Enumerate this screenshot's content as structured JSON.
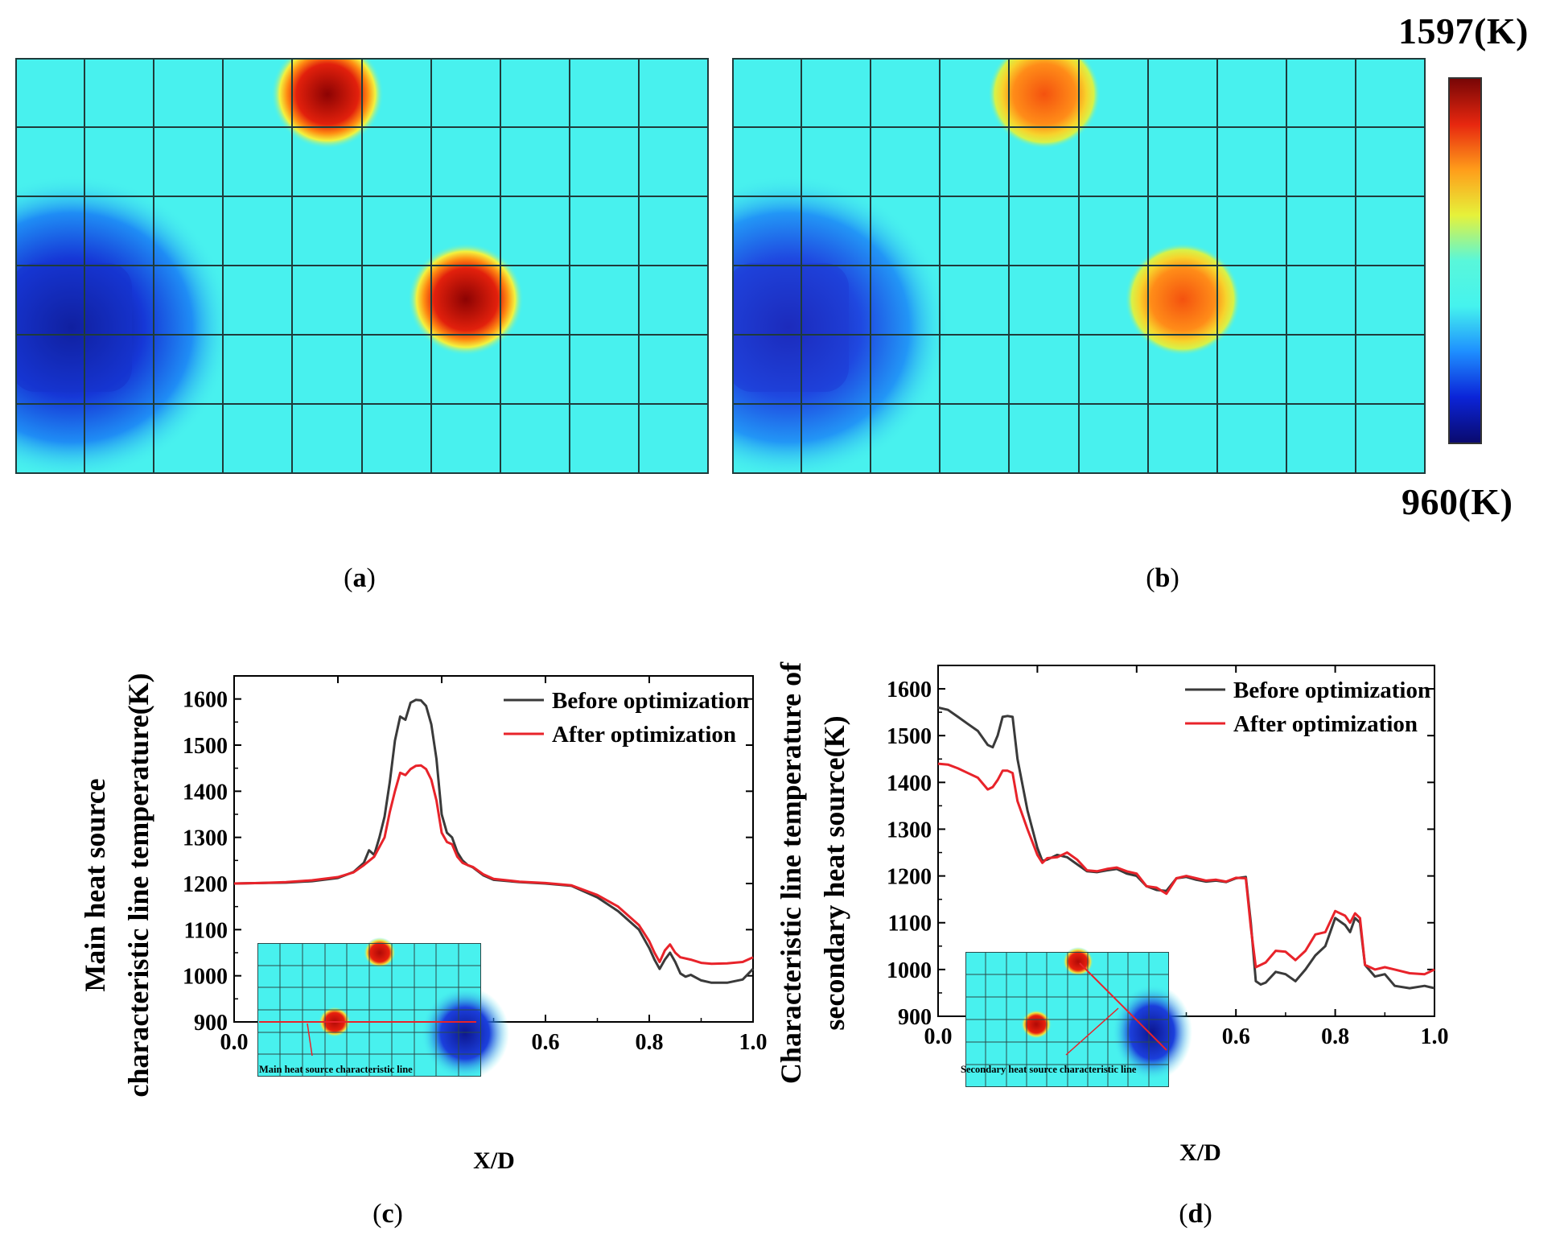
{
  "colorbar": {
    "max_label": "1597(K)",
    "min_label": "960(K)",
    "colormap": [
      "#0a0a6e",
      "#0b24d8",
      "#1e8fff",
      "#45f3ee",
      "#59f7da",
      "#e6f23a",
      "#ff9d1a",
      "#e7270f",
      "#780606"
    ]
  },
  "panels": {
    "a": {
      "open": "(",
      "letter": "a",
      "close": ")"
    },
    "b": {
      "open": "(",
      "letter": "b",
      "close": ")"
    },
    "c": {
      "open": "(",
      "letter": "c",
      "close": ")"
    },
    "d": {
      "open": "(",
      "letter": "d",
      "close": ")"
    }
  },
  "field_colors": {
    "background": "#48f1ee",
    "grid": "#1b3a3a"
  },
  "chart_data": [
    {
      "type": "line",
      "panel": "c",
      "xlabel": "X/D",
      "ylabel_lines": [
        "Main heat source",
        "characteristic line temperature(K)"
      ],
      "xlim": [
        0.0,
        1.0
      ],
      "ylim": [
        900,
        1650
      ],
      "xticks": [
        "0.0",
        "0.2",
        "0.4",
        "0.6",
        "0.8",
        "1.0"
      ],
      "yticks": [
        "900",
        "1000",
        "1100",
        "1200",
        "1300",
        "1400",
        "1500",
        "1600"
      ],
      "inset_caption": "Main heat source characteristic line",
      "series": [
        {
          "name": "Before optimization",
          "color": "#3a3a3a",
          "x": [
            0.0,
            0.05,
            0.1,
            0.15,
            0.2,
            0.23,
            0.25,
            0.26,
            0.27,
            0.28,
            0.29,
            0.3,
            0.31,
            0.32,
            0.33,
            0.34,
            0.35,
            0.36,
            0.37,
            0.38,
            0.39,
            0.4,
            0.41,
            0.42,
            0.43,
            0.44,
            0.45,
            0.46,
            0.48,
            0.5,
            0.55,
            0.6,
            0.65,
            0.7,
            0.74,
            0.78,
            0.8,
            0.81,
            0.82,
            0.83,
            0.84,
            0.85,
            0.86,
            0.87,
            0.88,
            0.9,
            0.92,
            0.95,
            0.98,
            1.0
          ],
          "y": [
            1200,
            1201,
            1202,
            1205,
            1212,
            1225,
            1245,
            1272,
            1262,
            1300,
            1345,
            1420,
            1510,
            1562,
            1555,
            1592,
            1598,
            1597,
            1585,
            1545,
            1470,
            1350,
            1310,
            1300,
            1268,
            1250,
            1240,
            1235,
            1218,
            1208,
            1203,
            1200,
            1195,
            1170,
            1140,
            1100,
            1060,
            1035,
            1015,
            1035,
            1050,
            1030,
            1005,
            998,
            1002,
            990,
            985,
            985,
            992,
            1015
          ]
        },
        {
          "name": "After optimization",
          "color": "#e8232a",
          "x": [
            0.0,
            0.05,
            0.1,
            0.15,
            0.2,
            0.23,
            0.25,
            0.27,
            0.29,
            0.3,
            0.31,
            0.32,
            0.33,
            0.34,
            0.35,
            0.36,
            0.37,
            0.38,
            0.39,
            0.4,
            0.41,
            0.42,
            0.43,
            0.44,
            0.45,
            0.46,
            0.48,
            0.5,
            0.55,
            0.6,
            0.65,
            0.7,
            0.74,
            0.78,
            0.8,
            0.81,
            0.82,
            0.83,
            0.84,
            0.85,
            0.86,
            0.88,
            0.9,
            0.92,
            0.95,
            0.98,
            1.0
          ],
          "y": [
            1200,
            1201,
            1203,
            1207,
            1214,
            1224,
            1240,
            1258,
            1300,
            1355,
            1400,
            1440,
            1435,
            1448,
            1455,
            1456,
            1448,
            1425,
            1380,
            1310,
            1290,
            1285,
            1258,
            1245,
            1240,
            1236,
            1220,
            1210,
            1204,
            1201,
            1196,
            1175,
            1150,
            1110,
            1075,
            1050,
            1030,
            1055,
            1068,
            1050,
            1040,
            1035,
            1028,
            1026,
            1027,
            1030,
            1040
          ]
        }
      ],
      "legend": "top-right"
    },
    {
      "type": "line",
      "panel": "d",
      "xlabel": "X/D",
      "ylabel_lines": [
        "Characteristic line temperature of",
        "secondary heat source(K)"
      ],
      "xlim": [
        0.0,
        1.0
      ],
      "ylim": [
        900,
        1650
      ],
      "xticks": [
        "0.0",
        "0.2",
        "0.4",
        "0.6",
        "0.8",
        "1.0"
      ],
      "yticks": [
        "900",
        "1000",
        "1100",
        "1200",
        "1300",
        "1400",
        "1500",
        "1600"
      ],
      "inset_caption": "Secondary heat source characteristic line",
      "series": [
        {
          "name": "Before optimization",
          "color": "#3a3a3a",
          "x": [
            0.0,
            0.02,
            0.04,
            0.06,
            0.08,
            0.1,
            0.11,
            0.12,
            0.13,
            0.14,
            0.15,
            0.16,
            0.18,
            0.2,
            0.21,
            0.22,
            0.24,
            0.26,
            0.28,
            0.3,
            0.32,
            0.34,
            0.36,
            0.38,
            0.4,
            0.42,
            0.44,
            0.46,
            0.48,
            0.5,
            0.52,
            0.54,
            0.56,
            0.58,
            0.6,
            0.62,
            0.63,
            0.64,
            0.65,
            0.66,
            0.68,
            0.7,
            0.72,
            0.74,
            0.76,
            0.78,
            0.8,
            0.82,
            0.83,
            0.84,
            0.85,
            0.86,
            0.88,
            0.9,
            0.92,
            0.95,
            0.98,
            1.0
          ],
          "y": [
            1560,
            1555,
            1540,
            1525,
            1510,
            1480,
            1475,
            1500,
            1540,
            1542,
            1540,
            1450,
            1340,
            1260,
            1232,
            1235,
            1245,
            1240,
            1225,
            1210,
            1208,
            1212,
            1215,
            1205,
            1200,
            1178,
            1170,
            1168,
            1195,
            1198,
            1192,
            1188,
            1190,
            1187,
            1195,
            1198,
            1100,
            975,
            968,
            972,
            995,
            990,
            975,
            1000,
            1030,
            1050,
            1110,
            1095,
            1080,
            1110,
            1100,
            1010,
            985,
            990,
            965,
            960,
            965,
            960
          ]
        },
        {
          "name": "After optimization",
          "color": "#e8232a",
          "x": [
            0.0,
            0.02,
            0.04,
            0.06,
            0.08,
            0.1,
            0.11,
            0.12,
            0.13,
            0.14,
            0.15,
            0.16,
            0.18,
            0.2,
            0.21,
            0.22,
            0.24,
            0.26,
            0.28,
            0.3,
            0.32,
            0.34,
            0.36,
            0.38,
            0.4,
            0.42,
            0.44,
            0.46,
            0.48,
            0.5,
            0.52,
            0.54,
            0.56,
            0.58,
            0.6,
            0.62,
            0.63,
            0.64,
            0.65,
            0.66,
            0.68,
            0.7,
            0.72,
            0.74,
            0.76,
            0.78,
            0.8,
            0.82,
            0.83,
            0.84,
            0.85,
            0.86,
            0.88,
            0.9,
            0.92,
            0.95,
            0.98,
            1.0
          ],
          "y": [
            1440,
            1438,
            1430,
            1420,
            1410,
            1385,
            1390,
            1405,
            1425,
            1425,
            1420,
            1360,
            1300,
            1245,
            1228,
            1238,
            1240,
            1250,
            1235,
            1212,
            1210,
            1215,
            1218,
            1210,
            1205,
            1178,
            1175,
            1162,
            1195,
            1200,
            1195,
            1190,
            1192,
            1188,
            1196,
            1195,
            1090,
            1005,
            1010,
            1015,
            1040,
            1038,
            1020,
            1040,
            1075,
            1080,
            1125,
            1115,
            1100,
            1120,
            1110,
            1010,
            1000,
            1005,
            1000,
            992,
            990,
            1000
          ]
        }
      ],
      "legend": "top-right"
    }
  ]
}
